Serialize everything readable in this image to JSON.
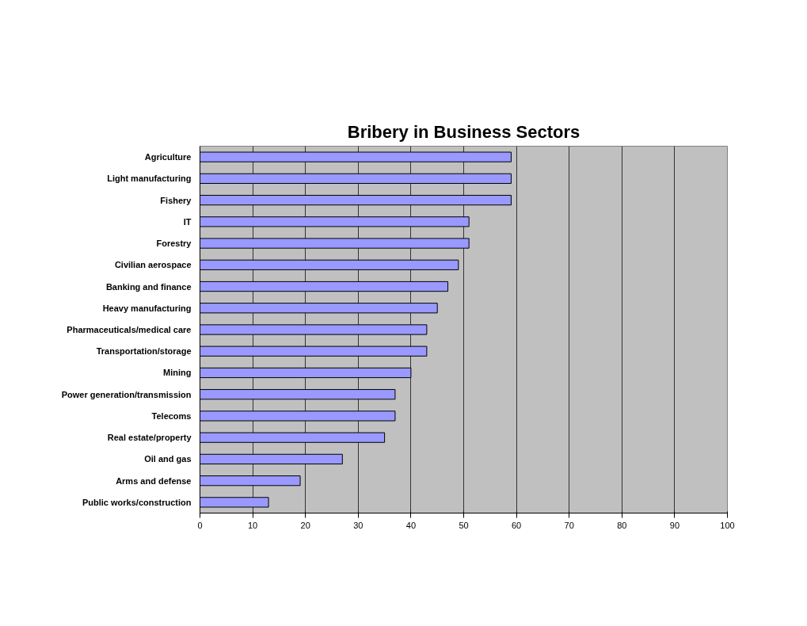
{
  "chart_data": {
    "type": "bar",
    "orientation": "horizontal",
    "title": "Bribery in Business Sectors",
    "categories": [
      "Agriculture",
      "Light manufacturing",
      "Fishery",
      "IT",
      "Forestry",
      "Civilian aerospace",
      "Banking and finance",
      "Heavy manufacturing",
      "Pharmaceuticals/medical care",
      "Transportation/storage",
      "Mining",
      "Power generation/transmission",
      "Telecoms",
      "Real estate/property",
      "Oil and gas",
      "Arms and defense",
      "Public works/construction"
    ],
    "values": [
      59,
      59,
      59,
      51,
      51,
      49,
      47,
      45,
      43,
      43,
      40,
      37,
      37,
      35,
      27,
      19,
      13
    ],
    "color": "#9999ff",
    "xlim": [
      0,
      100
    ],
    "xticks": [
      0,
      10,
      20,
      30,
      40,
      50,
      60,
      70,
      80,
      90,
      100
    ],
    "grid": "x"
  }
}
